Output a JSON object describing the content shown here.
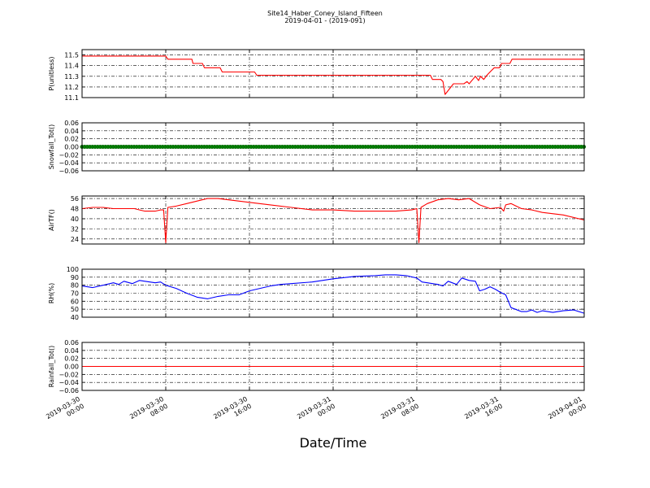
{
  "chart_data": {
    "title": "Site14_Haber_Coney_Island_Fifteen",
    "subtitle": "2019-04-01 - (2019-091)",
    "xlabel": "Date/Time",
    "x_tick_labels": [
      [
        "2019-03-30",
        "00:00"
      ],
      [
        "2019-03-30",
        "08:00"
      ],
      [
        "2019-03-30",
        "16:00"
      ],
      [
        "2019-03-31",
        "00:00"
      ],
      [
        "2019-03-31",
        "08:00"
      ],
      [
        "2019-03-31",
        "16:00"
      ],
      [
        "2019-04-01",
        "00:00"
      ]
    ],
    "x_range_hours": [
      0,
      48
    ],
    "grid": true,
    "panels": [
      {
        "type": "line",
        "ylabel": "P(unitless)",
        "ylim": [
          11.1,
          11.55
        ],
        "yticks": [
          "11.1",
          "11.2",
          "11.3",
          "11.4",
          "11.5"
        ],
        "ytick_values": [
          11.1,
          11.2,
          11.3,
          11.4,
          11.5
        ],
        "color": "#ff0000",
        "marker": false,
        "points": [
          [
            0,
            11.49
          ],
          [
            2,
            11.49
          ],
          [
            4,
            11.49
          ],
          [
            6,
            11.49
          ],
          [
            8,
            11.49
          ],
          [
            8.2,
            11.46
          ],
          [
            10.5,
            11.46
          ],
          [
            10.6,
            11.42
          ],
          [
            11.5,
            11.42
          ],
          [
            11.7,
            11.38
          ],
          [
            13.2,
            11.38
          ],
          [
            13.4,
            11.34
          ],
          [
            16.5,
            11.34
          ],
          [
            16.7,
            11.31
          ],
          [
            20,
            11.31
          ],
          [
            24,
            11.31
          ],
          [
            28,
            11.31
          ],
          [
            32,
            11.31
          ],
          [
            33.3,
            11.31
          ],
          [
            33.5,
            11.27
          ],
          [
            34.3,
            11.27
          ],
          [
            34.5,
            11.25
          ],
          [
            34.7,
            11.13
          ],
          [
            35.5,
            11.23
          ],
          [
            36.5,
            11.23
          ],
          [
            36.8,
            11.25
          ],
          [
            37,
            11.23
          ],
          [
            37.6,
            11.3
          ],
          [
            37.9,
            11.26
          ],
          [
            38.1,
            11.3
          ],
          [
            38.4,
            11.27
          ],
          [
            38.7,
            11.31
          ],
          [
            39,
            11.34
          ],
          [
            39.4,
            11.38
          ],
          [
            39.9,
            11.38
          ],
          [
            40.1,
            11.42
          ],
          [
            40.9,
            11.42
          ],
          [
            41.1,
            11.46
          ],
          [
            44,
            11.46
          ],
          [
            48,
            11.46
          ]
        ]
      },
      {
        "type": "scatter",
        "ylabel": "Snowfall_Tot()",
        "ylim": [
          -0.06,
          0.06
        ],
        "yticks": [
          "−0.06",
          "−0.04",
          "−0.02",
          "0.00",
          "0.02",
          "0.04",
          "0.06"
        ],
        "ytick_values": [
          -0.06,
          -0.04,
          -0.02,
          0,
          0.02,
          0.04,
          0.06
        ],
        "color": "#008000",
        "marker": true,
        "points": [
          [
            0,
            0
          ],
          [
            48,
            0
          ]
        ]
      },
      {
        "type": "line",
        "ylabel": "AirTF()",
        "ylim": [
          20,
          58
        ],
        "yticks": [
          "24",
          "32",
          "40",
          "48",
          "56"
        ],
        "ytick_values": [
          24,
          32,
          40,
          48,
          56
        ],
        "color": "#ff0000",
        "marker": false,
        "points": [
          [
            0,
            48
          ],
          [
            1,
            49
          ],
          [
            2,
            49
          ],
          [
            3,
            48
          ],
          [
            4,
            48
          ],
          [
            5,
            48
          ],
          [
            5.5,
            47
          ],
          [
            6,
            46
          ],
          [
            7,
            46
          ],
          [
            7.5,
            47
          ],
          [
            7.8,
            47
          ],
          [
            8,
            21
          ],
          [
            8.2,
            49
          ],
          [
            9,
            50
          ],
          [
            10,
            52
          ],
          [
            11,
            54
          ],
          [
            12,
            56
          ],
          [
            13,
            56
          ],
          [
            14,
            55
          ],
          [
            16,
            53
          ],
          [
            18,
            51
          ],
          [
            20,
            49
          ],
          [
            22,
            47
          ],
          [
            24,
            47
          ],
          [
            26,
            46
          ],
          [
            28,
            46
          ],
          [
            30,
            46
          ],
          [
            31.5,
            47
          ],
          [
            32,
            48
          ],
          [
            32.2,
            21
          ],
          [
            32.4,
            49
          ],
          [
            33,
            52
          ],
          [
            34,
            55
          ],
          [
            35,
            56
          ],
          [
            36,
            55
          ],
          [
            37,
            56
          ],
          [
            38,
            51
          ],
          [
            39,
            48
          ],
          [
            40,
            49
          ],
          [
            40.3,
            46
          ],
          [
            40.5,
            51
          ],
          [
            41,
            52
          ],
          [
            42,
            48
          ],
          [
            43,
            47
          ],
          [
            44,
            45
          ],
          [
            46,
            43
          ],
          [
            48,
            39
          ]
        ]
      },
      {
        "type": "line",
        "ylabel": "RH(%)",
        "ylim": [
          40,
          100
        ],
        "yticks": [
          "40",
          "50",
          "60",
          "70",
          "80",
          "90",
          "100"
        ],
        "ytick_values": [
          40,
          50,
          60,
          70,
          80,
          90,
          100
        ],
        "color": "#0000ff",
        "marker": false,
        "points": [
          [
            0,
            79
          ],
          [
            1,
            77
          ],
          [
            2,
            80
          ],
          [
            3,
            83
          ],
          [
            3.5,
            81
          ],
          [
            4,
            85
          ],
          [
            4.8,
            82
          ],
          [
            5.5,
            86
          ],
          [
            6,
            85
          ],
          [
            7,
            83
          ],
          [
            7.5,
            84
          ],
          [
            8,
            80
          ],
          [
            9,
            76
          ],
          [
            10,
            70
          ],
          [
            11,
            65
          ],
          [
            12,
            63
          ],
          [
            13,
            66
          ],
          [
            14,
            68
          ],
          [
            15,
            68
          ],
          [
            16,
            73
          ],
          [
            17,
            76
          ],
          [
            18,
            79
          ],
          [
            19,
            81
          ],
          [
            20,
            82
          ],
          [
            22,
            84
          ],
          [
            24,
            88
          ],
          [
            26,
            91
          ],
          [
            28,
            92
          ],
          [
            29,
            93
          ],
          [
            30,
            93
          ],
          [
            31,
            92
          ],
          [
            32,
            89
          ],
          [
            32.5,
            84
          ],
          [
            33,
            83
          ],
          [
            34,
            81
          ],
          [
            34.5,
            79
          ],
          [
            35,
            85
          ],
          [
            35.8,
            81
          ],
          [
            36.3,
            89
          ],
          [
            37,
            86
          ],
          [
            37.6,
            85
          ],
          [
            38,
            73
          ],
          [
            38.5,
            75
          ],
          [
            39,
            78
          ],
          [
            39.5,
            75
          ],
          [
            40,
            71
          ],
          [
            40.5,
            68
          ],
          [
            41,
            52
          ],
          [
            42,
            47
          ],
          [
            42.5,
            47
          ],
          [
            43,
            49
          ],
          [
            43.5,
            46
          ],
          [
            44,
            48
          ],
          [
            45,
            46
          ],
          [
            46,
            48
          ],
          [
            47,
            49
          ],
          [
            48,
            45
          ]
        ]
      },
      {
        "type": "line",
        "ylabel": "Rainfall_Tot()",
        "ylim": [
          -0.06,
          0.06
        ],
        "yticks": [
          "−0.06",
          "−0.04",
          "−0.02",
          "0.00",
          "0.02",
          "0.04",
          "0.06"
        ],
        "ytick_values": [
          -0.06,
          -0.04,
          -0.02,
          0,
          0.02,
          0.04,
          0.06
        ],
        "color": "#ff0000",
        "marker": false,
        "points": [
          [
            0,
            0
          ],
          [
            48,
            0
          ]
        ]
      }
    ]
  }
}
